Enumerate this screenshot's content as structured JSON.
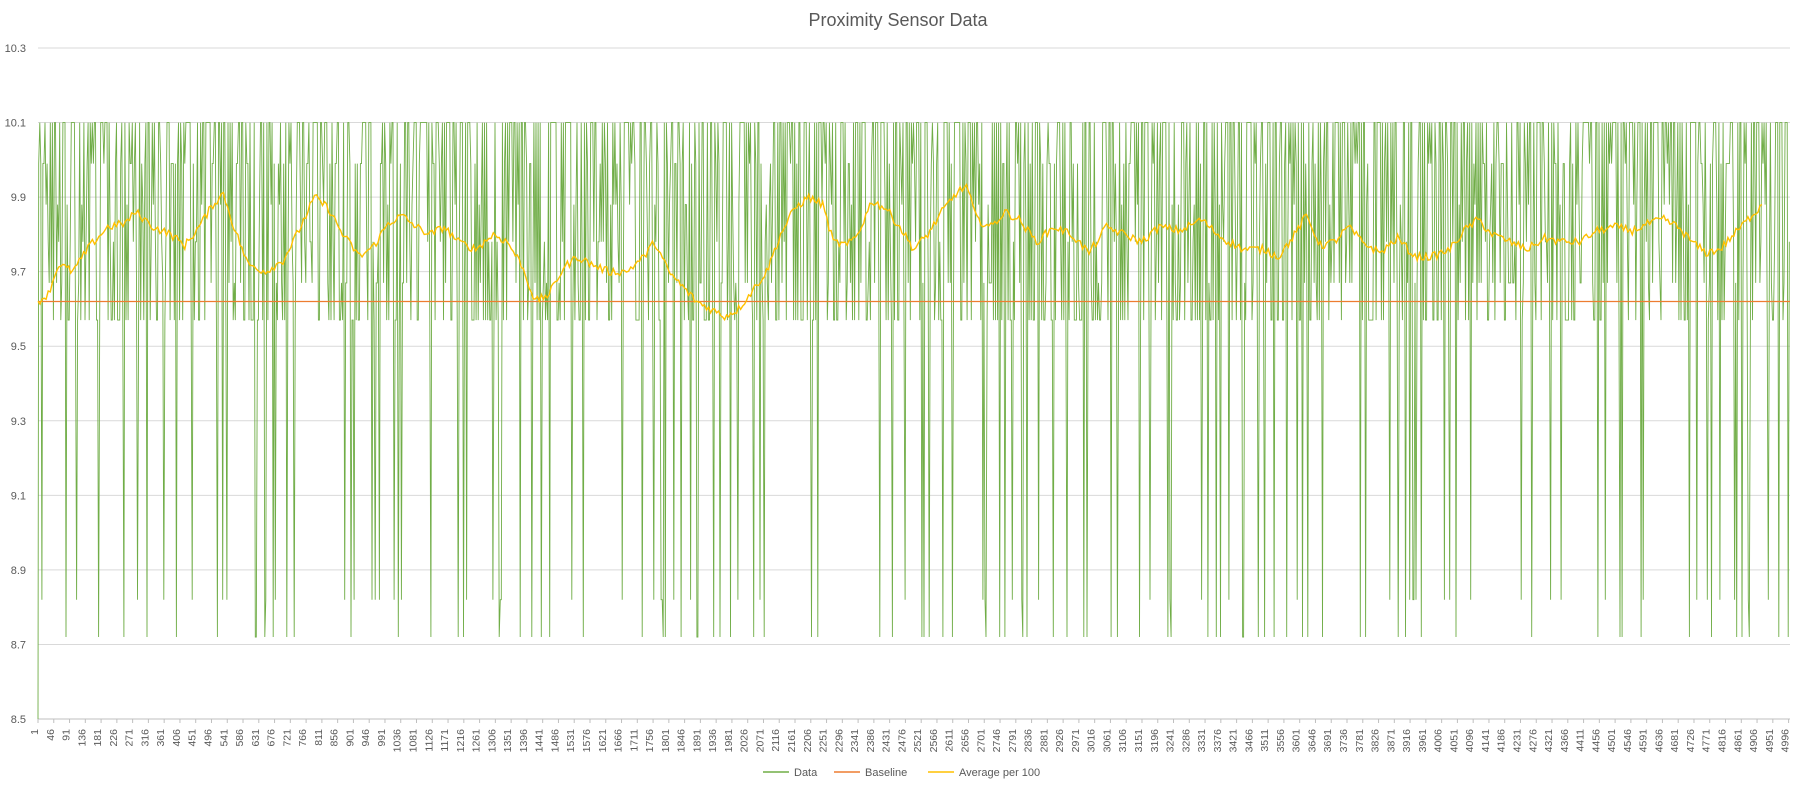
{
  "chart_data": {
    "type": "line",
    "title": "Proximity Sensor Data",
    "xlabel": "",
    "ylabel": "",
    "ylim": [
      8.5,
      10.3
    ],
    "yticks": [
      "8.5",
      "8.7",
      "8.9",
      "9.1",
      "9.3",
      "9.5",
      "9.7",
      "9.9",
      "10.1",
      "10.3"
    ],
    "x_range": [
      1,
      5000
    ],
    "x_tick_step": 45,
    "xticks": [
      "1",
      "46",
      "91",
      "136",
      "181",
      "226",
      "271",
      "316",
      "361",
      "406",
      "451",
      "496",
      "541",
      "586",
      "631",
      "676",
      "721",
      "766",
      "811",
      "856",
      "901",
      "946",
      "991",
      "1036",
      "1081",
      "1126",
      "1171",
      "1216",
      "1261",
      "1306",
      "1351",
      "1396",
      "1441",
      "1486",
      "1531",
      "1576",
      "1621",
      "1666",
      "1711",
      "1756",
      "1801",
      "1846",
      "1891",
      "1936",
      "1981",
      "2026",
      "2071",
      "2116",
      "2161",
      "2206",
      "2251",
      "2296",
      "2341",
      "2386",
      "2431",
      "2476",
      "2521",
      "2566",
      "2611",
      "2656",
      "2701",
      "2746",
      "2791",
      "2836",
      "2881",
      "2926",
      "2971",
      "3016",
      "3061",
      "3106",
      "3151",
      "3196",
      "3241",
      "3286",
      "3331",
      "3376",
      "3421",
      "3466",
      "3511",
      "3556",
      "3601",
      "3646",
      "3691",
      "3736",
      "3781",
      "3826",
      "3871",
      "3916",
      "3961",
      "4006",
      "4051",
      "4096",
      "4141",
      "4186",
      "4231",
      "4276",
      "4321",
      "4366",
      "4411",
      "4456",
      "4501",
      "4546",
      "4591",
      "4636",
      "4681",
      "4726",
      "4771",
      "4816",
      "4861",
      "4906",
      "4951",
      "4996"
    ],
    "grid": true,
    "legend_position": "bottom",
    "series": [
      {
        "name": "Data",
        "color": "#70ad47",
        "levels": [
          8.72,
          8.82,
          9.57,
          9.67,
          9.78,
          9.88,
          9.99,
          10.1
        ],
        "note_levels_typical": [
          9.57,
          10.1
        ],
        "sampled": [
          [
            1,
            8.5
          ],
          [
            10,
            10.1
          ],
          [
            50,
            9.57
          ],
          [
            100,
            10.1
          ],
          [
            200,
            8.72
          ],
          [
            300,
            9.99
          ],
          [
            400,
            9.57
          ],
          [
            500,
            10.1
          ],
          [
            1000,
            9.67
          ],
          [
            1500,
            8.72
          ],
          [
            2000,
            9.57
          ],
          [
            2500,
            10.1
          ],
          [
            3000,
            8.82
          ],
          [
            3500,
            9.88
          ],
          [
            4000,
            9.57
          ],
          [
            4500,
            10.1
          ],
          [
            5000,
            9.57
          ]
        ]
      },
      {
        "name": "Baseline",
        "color": "#ed7d31",
        "value": 9.62
      },
      {
        "name": "Average per 100",
        "color": "#ffc000",
        "points": [
          [
            1,
            9.62
          ],
          [
            30,
            9.64
          ],
          [
            60,
            9.72
          ],
          [
            100,
            9.7
          ],
          [
            150,
            9.77
          ],
          [
            200,
            9.82
          ],
          [
            250,
            9.83
          ],
          [
            280,
            9.86
          ],
          [
            330,
            9.82
          ],
          [
            380,
            9.8
          ],
          [
            420,
            9.77
          ],
          [
            460,
            9.82
          ],
          [
            500,
            9.88
          ],
          [
            530,
            9.91
          ],
          [
            560,
            9.82
          ],
          [
            600,
            9.72
          ],
          [
            650,
            9.7
          ],
          [
            700,
            9.73
          ],
          [
            740,
            9.8
          ],
          [
            790,
            9.9
          ],
          [
            830,
            9.87
          ],
          [
            870,
            9.8
          ],
          [
            920,
            9.74
          ],
          [
            960,
            9.77
          ],
          [
            1000,
            9.83
          ],
          [
            1040,
            9.85
          ],
          [
            1080,
            9.82
          ],
          [
            1120,
            9.8
          ],
          [
            1160,
            9.82
          ],
          [
            1200,
            9.78
          ],
          [
            1250,
            9.76
          ],
          [
            1300,
            9.8
          ],
          [
            1340,
            9.78
          ],
          [
            1380,
            9.72
          ],
          [
            1420,
            9.62
          ],
          [
            1460,
            9.64
          ],
          [
            1500,
            9.71
          ],
          [
            1540,
            9.74
          ],
          [
            1580,
            9.72
          ],
          [
            1630,
            9.7
          ],
          [
            1680,
            9.7
          ],
          [
            1730,
            9.74
          ],
          [
            1760,
            9.78
          ],
          [
            1800,
            9.7
          ],
          [
            1840,
            9.66
          ],
          [
            1880,
            9.62
          ],
          [
            1920,
            9.6
          ],
          [
            1960,
            9.58
          ],
          [
            2000,
            9.6
          ],
          [
            2040,
            9.65
          ],
          [
            2080,
            9.7
          ],
          [
            2120,
            9.8
          ],
          [
            2160,
            9.87
          ],
          [
            2200,
            9.9
          ],
          [
            2240,
            9.88
          ],
          [
            2270,
            9.78
          ],
          [
            2310,
            9.77
          ],
          [
            2340,
            9.8
          ],
          [
            2380,
            9.89
          ],
          [
            2420,
            9.87
          ],
          [
            2460,
            9.82
          ],
          [
            2500,
            9.76
          ],
          [
            2540,
            9.8
          ],
          [
            2580,
            9.86
          ],
          [
            2620,
            9.91
          ],
          [
            2650,
            9.93
          ],
          [
            2680,
            9.84
          ],
          [
            2720,
            9.82
          ],
          [
            2760,
            9.86
          ],
          [
            2800,
            9.84
          ],
          [
            2850,
            9.78
          ],
          [
            2900,
            9.82
          ],
          [
            2950,
            9.8
          ],
          [
            3000,
            9.75
          ],
          [
            3050,
            9.82
          ],
          [
            3100,
            9.8
          ],
          [
            3150,
            9.78
          ],
          [
            3200,
            9.82
          ],
          [
            3260,
            9.81
          ],
          [
            3320,
            9.84
          ],
          [
            3380,
            9.79
          ],
          [
            3440,
            9.76
          ],
          [
            3500,
            9.76
          ],
          [
            3540,
            9.74
          ],
          [
            3580,
            9.79
          ],
          [
            3620,
            9.85
          ],
          [
            3660,
            9.77
          ],
          [
            3700,
            9.78
          ],
          [
            3740,
            9.82
          ],
          [
            3780,
            9.78
          ],
          [
            3830,
            9.75
          ],
          [
            3880,
            9.79
          ],
          [
            3930,
            9.74
          ],
          [
            3980,
            9.74
          ],
          [
            4030,
            9.76
          ],
          [
            4070,
            9.81
          ],
          [
            4110,
            9.84
          ],
          [
            4150,
            9.8
          ],
          [
            4200,
            9.78
          ],
          [
            4250,
            9.76
          ],
          [
            4300,
            9.79
          ],
          [
            4350,
            9.78
          ],
          [
            4400,
            9.78
          ],
          [
            4450,
            9.81
          ],
          [
            4500,
            9.82
          ],
          [
            4550,
            9.81
          ],
          [
            4600,
            9.83
          ],
          [
            4640,
            9.84
          ],
          [
            4680,
            9.82
          ],
          [
            4720,
            9.78
          ],
          [
            4760,
            9.75
          ],
          [
            4800,
            9.76
          ],
          [
            4840,
            9.8
          ],
          [
            4880,
            9.84
          ],
          [
            4920,
            9.88
          ]
        ]
      }
    ]
  }
}
